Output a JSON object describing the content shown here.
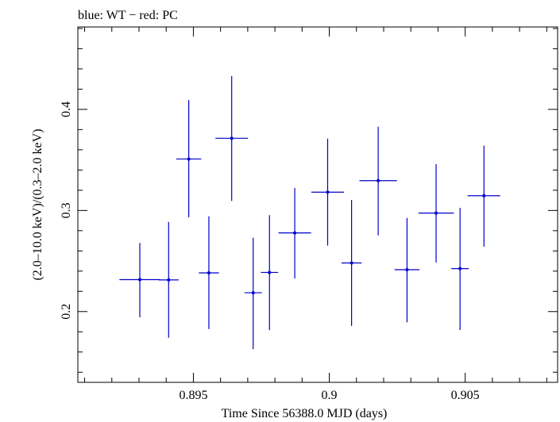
{
  "chart_data": {
    "type": "scatter",
    "title": "blue: WT − red: PC",
    "xlabel": "Time Since 56388.0 MJD (days)",
    "ylabel": "(2.0–10.0 keV)/(0.3–2.0 keV)",
    "xlim": [
      0.89075,
      0.9084
    ],
    "ylim": [
      0.13,
      0.4815
    ],
    "x_ticks": [
      {
        "value": 0.895,
        "label": "0.895"
      },
      {
        "value": 0.9,
        "label": "0.9"
      },
      {
        "value": 0.905,
        "label": "0.905"
      }
    ],
    "y_ticks": [
      {
        "value": 0.2,
        "label": "0.2"
      },
      {
        "value": 0.3,
        "label": "0.3"
      },
      {
        "value": 0.4,
        "label": "0.4"
      }
    ],
    "grid": false,
    "series": [
      {
        "color": "#0000cc",
        "points": [
          {
            "x": 0.89303,
            "xerr": 0.00075,
            "y": 0.2316,
            "yerr_low": 0.0372,
            "yerr_high": 0.0363
          },
          {
            "x": 0.89409,
            "xerr": 0.00037,
            "y": 0.2313,
            "yerr_low": 0.0573,
            "yerr_high": 0.0574
          },
          {
            "x": 0.89483,
            "xerr": 0.00046,
            "y": 0.3509,
            "yerr_low": 0.0577,
            "yerr_high": 0.0583
          },
          {
            "x": 0.89557,
            "xerr": 0.00037,
            "y": 0.2383,
            "yerr_low": 0.0555,
            "yerr_high": 0.0559
          },
          {
            "x": 0.89641,
            "xerr": 0.0006,
            "y": 0.3714,
            "yerr_low": 0.062,
            "yerr_high": 0.0616
          },
          {
            "x": 0.8972,
            "xerr": 0.00032,
            "y": 0.2186,
            "yerr_low": 0.0557,
            "yerr_high": 0.0545
          },
          {
            "x": 0.8978,
            "xerr": 0.00032,
            "y": 0.2387,
            "yerr_low": 0.0571,
            "yerr_high": 0.0567
          },
          {
            "x": 0.89873,
            "xerr": 0.0006,
            "y": 0.2778,
            "yerr_low": 0.0451,
            "yerr_high": 0.0445
          },
          {
            "x": 0.89994,
            "xerr": 0.0006,
            "y": 0.3181,
            "yerr_low": 0.0529,
            "yerr_high": 0.0529
          },
          {
            "x": 0.90082,
            "xerr": 0.00037,
            "y": 0.2481,
            "yerr_low": 0.0623,
            "yerr_high": 0.0623
          },
          {
            "x": 0.9018,
            "xerr": 0.00069,
            "y": 0.3295,
            "yerr_low": 0.0542,
            "yerr_high": 0.0533
          },
          {
            "x": 0.90286,
            "xerr": 0.00046,
            "y": 0.2414,
            "yerr_low": 0.052,
            "yerr_high": 0.0512
          },
          {
            "x": 0.90393,
            "xerr": 0.00065,
            "y": 0.2974,
            "yerr_low": 0.0489,
            "yerr_high": 0.0484
          },
          {
            "x": 0.90481,
            "xerr": 0.00032,
            "y": 0.2425,
            "yerr_low": 0.0607,
            "yerr_high": 0.0601
          },
          {
            "x": 0.90569,
            "xerr": 0.0006,
            "y": 0.3146,
            "yerr_low": 0.0504,
            "yerr_high": 0.0495
          }
        ]
      }
    ]
  }
}
